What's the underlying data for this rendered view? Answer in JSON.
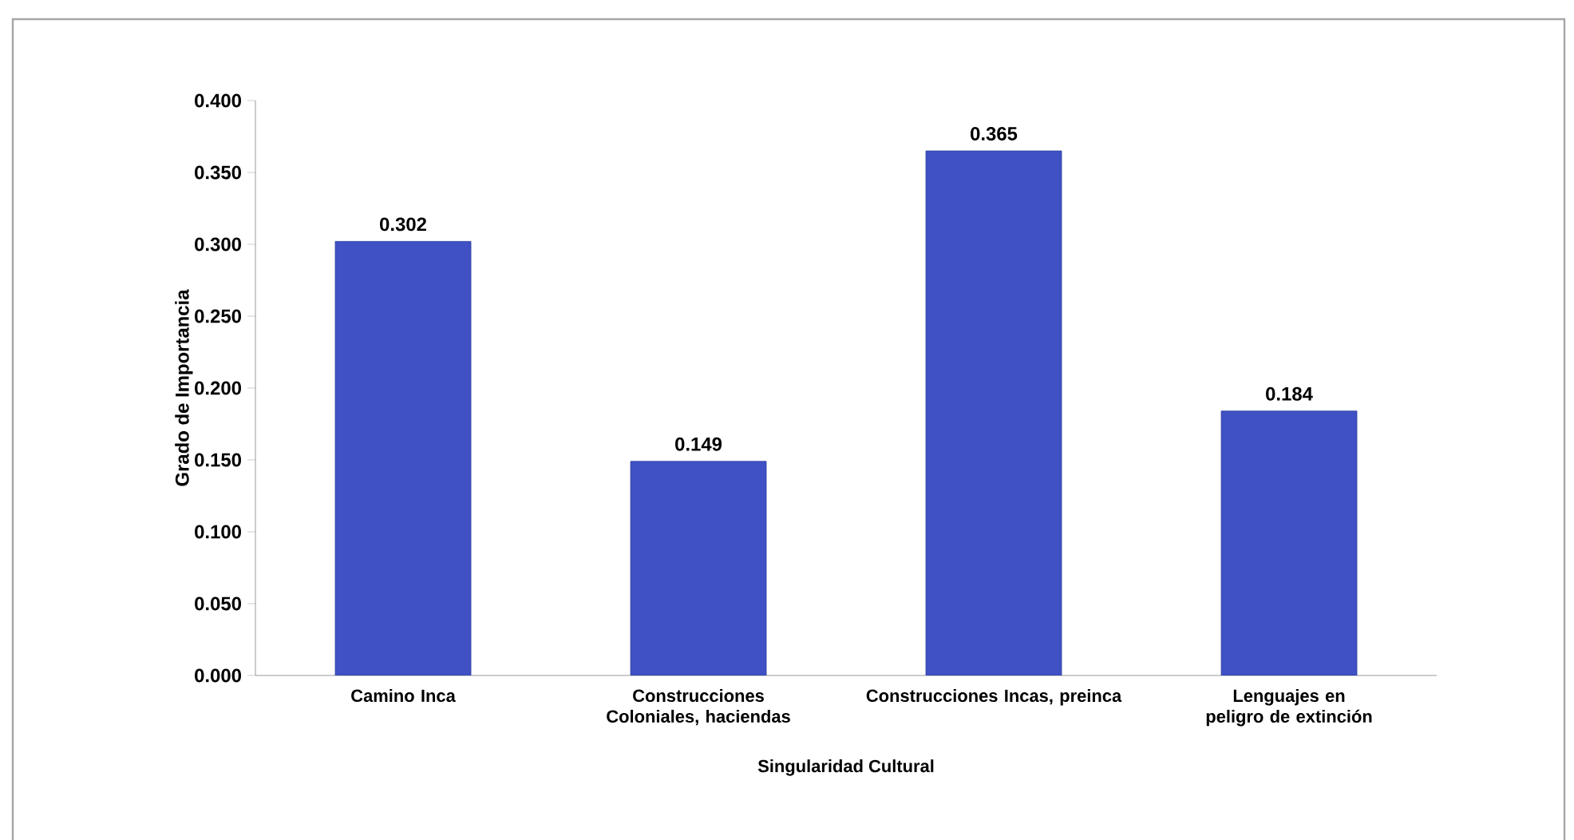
{
  "chart_data": {
    "type": "bar",
    "xlabel": "Singularidad Cultural",
    "ylabel": "Grado de Importancia",
    "categories": [
      "Camino  Inca",
      "Construcciones Coloniales, haciendas",
      "Construcciones Incas, preinca",
      "Lenguajes en peligro de extinción"
    ],
    "values": [
      0.302,
      0.149,
      0.365,
      0.184
    ],
    "color": "#3f51c4",
    "value_labels": [
      "0.302",
      "0.149",
      "0.365",
      "0.184"
    ],
    "ylim": [
      0,
      0.4
    ],
    "yticks": [
      {
        "value": 0,
        "label": "0.000"
      },
      {
        "value": 0.05,
        "label": "0.050"
      },
      {
        "value": 0.1,
        "label": "0.100"
      },
      {
        "value": 0.15,
        "label": "0.150"
      },
      {
        "value": 0.2,
        "label": "0.200"
      },
      {
        "value": 0.25,
        "label": "0.250"
      },
      {
        "value": 0.3,
        "label": "0.300"
      },
      {
        "value": 0.35,
        "label": "0.350"
      },
      {
        "value": 0.4,
        "label": "0.400"
      }
    ],
    "grid": false
  }
}
